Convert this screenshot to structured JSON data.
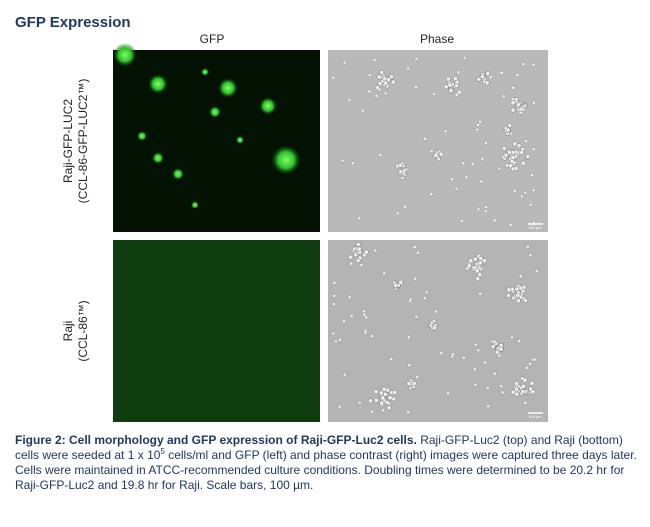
{
  "title": "GFP Expression",
  "columns": [
    "GFP",
    "Phase"
  ],
  "rows": [
    {
      "label": "Raji-GFP-LUC2",
      "sublabel": "(CCL-86-GFP-LUC2™)"
    },
    {
      "label": "Raji",
      "sublabel": "(CCL-86™)"
    }
  ],
  "scale_bar_label": "100 µm",
  "caption": {
    "bold": "Figure 2: Cell morphology and GFP expression of Raji-GFP-Luc2 cells.",
    "text_before_sup": " Raji-GFP-Luc2 (top) and Raji (bottom) cells were seeded at 1 x 10",
    "sup": "5",
    "text_after": " cells/ml and GFP (left) and phase contrast (right) images were captured three days later. Cells were maintained in ATCC-recommended culture conditions. Doubling times were determined to be 20.2 hr for Raji-GFP-Luc2 and 19.8 hr for Raji. Scale bars, 100 µm."
  }
}
